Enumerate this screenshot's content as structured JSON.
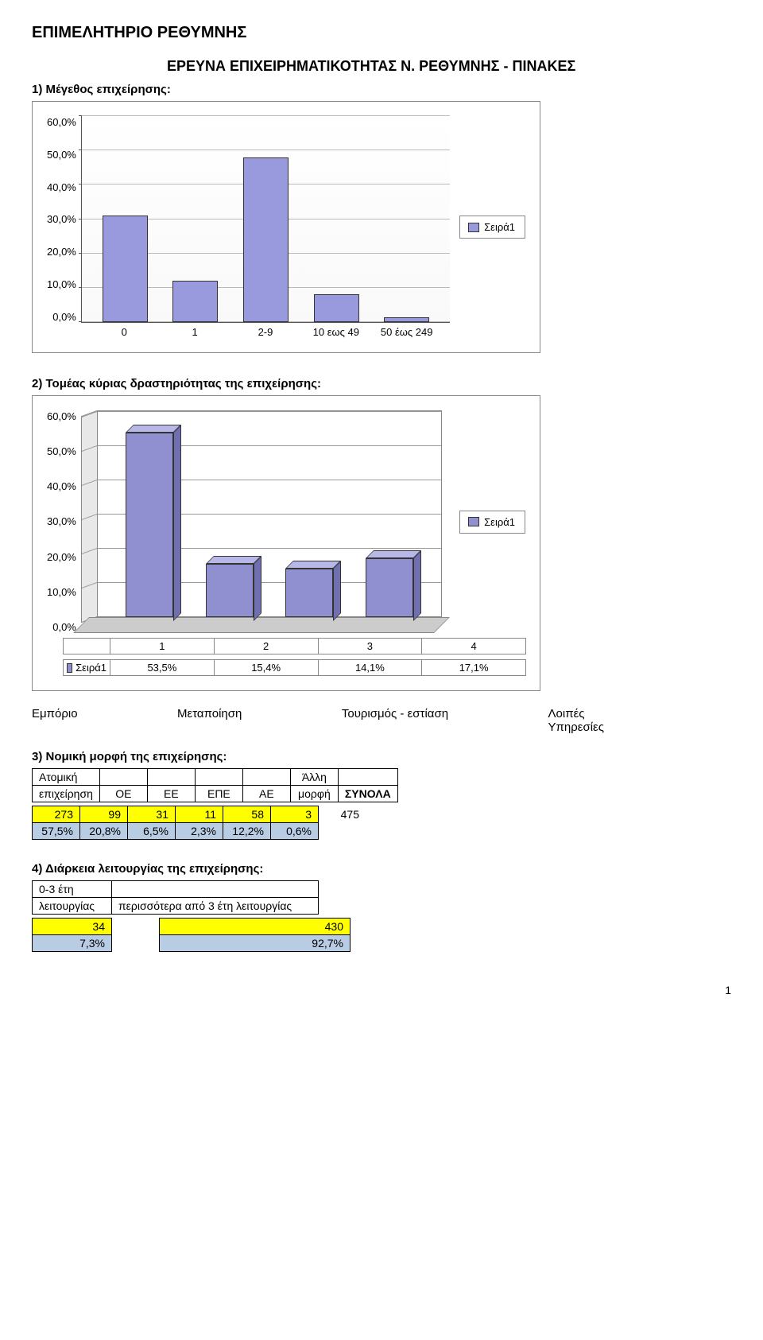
{
  "page": {
    "header": "ΕΠΙΜΕΛΗΤΗΡΙΟ ΡΕΘΥΜΝΗΣ",
    "title": "ΕΡΕΥΝΑ ΕΠΙΧΕΙΡΗΜΑΤΙΚΟΤΗΤΑΣ Ν. ΡΕΘΥΜΝΗΣ - ΠΙΝΑΚΕΣ",
    "number": "1"
  },
  "q1": {
    "label": "1) Μέγεθος επιχείρησης:",
    "chart": {
      "type": "bar",
      "y_ticks": [
        "60,0%",
        "50,0%",
        "40,0%",
        "30,0%",
        "20,0%",
        "10,0%",
        "0,0%"
      ],
      "ymax": 60,
      "categories": [
        "0",
        "1",
        "2-9",
        "10 εως 49",
        "50 έως 249"
      ],
      "values": [
        31,
        12,
        48,
        8,
        1.5
      ],
      "bar_fill": "#9999dd",
      "bar_border": "#333333",
      "grid_color": "#bbbbbb",
      "background": "#ffffff"
    },
    "legend": {
      "label": "Σειρά1",
      "swatch": "#9999dd"
    }
  },
  "q2": {
    "label": "2) Τομέας κύριας δραστηριότητας της επιχείρησης:",
    "chart": {
      "type": "bar3d",
      "y_ticks": [
        "60,0%",
        "50,0%",
        "40,0%",
        "30,0%",
        "20,0%",
        "10,0%",
        "0,0%"
      ],
      "ymax": 60,
      "x_header": "",
      "x_nums": [
        "1",
        "2",
        "3",
        "4"
      ],
      "series_label": "Σειρά1",
      "values": [
        53.5,
        15.4,
        14.1,
        17.1
      ],
      "value_labels": [
        "53,5%",
        "15,4%",
        "14,1%",
        "17,1%"
      ],
      "bar_front": "#9090d0",
      "bar_top": "#b8b8e8",
      "bar_side": "#7070b0",
      "back_color": "#ffffff",
      "side_panel": "#e8e8e8",
      "floor": "#cccccc",
      "grid_color": "#999999"
    },
    "legend": {
      "label": "Σειρά1",
      "swatch": "#9090d0"
    },
    "col_labels": {
      "c1": "Εμπόριο",
      "c2": "Μεταποίηση",
      "c3": "Τουρισμός - εστίαση",
      "c4_a": "Λοιπές",
      "c4_b": "Υπηρεσίες"
    }
  },
  "q3": {
    "label": "3) Νομική μορφή της επιχείρησης:",
    "headers": {
      "h1a": "Ατομική",
      "h1b": "επιχείρηση",
      "h2": "ΟΕ",
      "h3": "ΕΕ",
      "h4": "ΕΠΕ",
      "h5": "ΑΕ",
      "h6a": "Άλλη",
      "h6b": "μορφή",
      "h7": "ΣΥΝΟΛΑ"
    },
    "row_counts": [
      "273",
      "99",
      "31",
      "11",
      "58",
      "3",
      "475"
    ],
    "row_pct": [
      "57,5%",
      "20,8%",
      "6,5%",
      "2,3%",
      "12,2%",
      "0,6%"
    ],
    "yellow": "#ffff00",
    "blue": "#b8cce4"
  },
  "q4": {
    "label": "4) Διάρκεια λειτουργίας της επιχείρησης:",
    "headers": {
      "h1a": "0-3 έτη",
      "h1b": "λειτουργίας",
      "h2": "περισσότερα από 3 έτη λειτουργίας"
    },
    "row_counts": [
      "34",
      "430"
    ],
    "row_pct": [
      "7,3%",
      "92,7%"
    ],
    "yellow": "#ffff00",
    "blue": "#b8cce4"
  }
}
